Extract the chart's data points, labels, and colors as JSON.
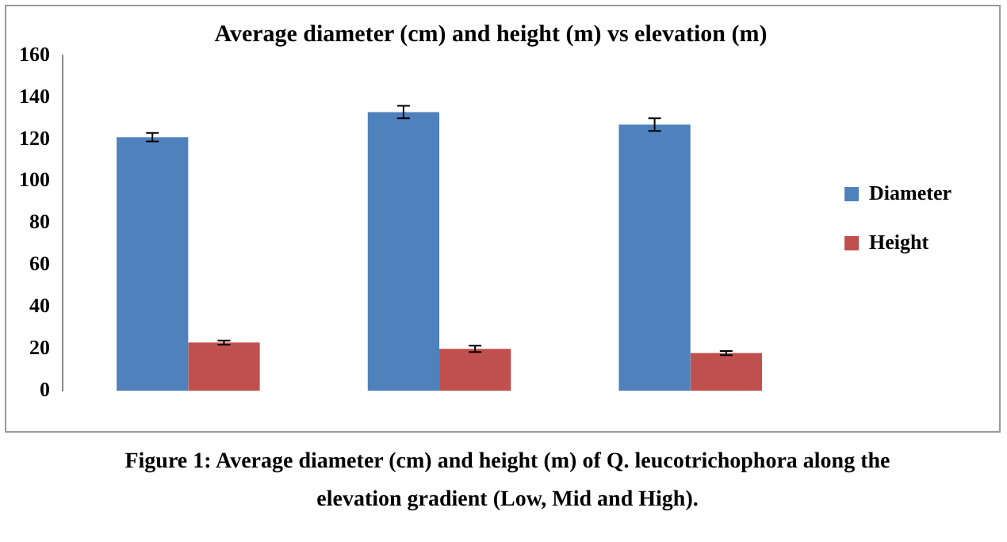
{
  "chart_data": {
    "type": "bar",
    "title": "Average diameter (cm) and height (m) vs elevation (m)",
    "categories": [
      null,
      null,
      null
    ],
    "series": [
      {
        "name": "Diameter",
        "color": "#4f81bd",
        "values": [
          121,
          133,
          127
        ],
        "errors": [
          2,
          3,
          3
        ]
      },
      {
        "name": "Height",
        "color": "#c0504d",
        "values": [
          23,
          20,
          18
        ],
        "errors": [
          1,
          1.5,
          1
        ]
      }
    ],
    "ylim": [
      0,
      160
    ],
    "yticks": [
      0,
      20,
      40,
      60,
      80,
      100,
      120,
      140,
      160
    ],
    "grid": false,
    "legend": "right",
    "annotations": [
      "Figure 1: Average diameter (cm) and height (m) of Q. leucotrichophora along the elevation gradient (Low, Mid and High)."
    ]
  }
}
